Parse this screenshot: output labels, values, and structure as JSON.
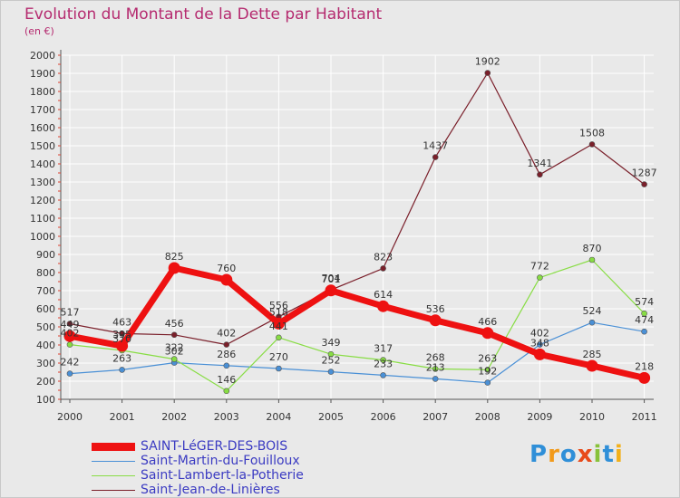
{
  "header": {
    "title": "Evolution du Montant de la Dette par Habitant",
    "unit": "(en €)"
  },
  "brand": "Proxiti",
  "colors": {
    "title": "#b52a6f",
    "legend_text": "#3b3bc2",
    "background": "#e9e9e9",
    "grid": "#ffffff"
  },
  "chart_data": {
    "type": "line",
    "title": "Evolution du Montant de la Dette par Habitant",
    "subtitle": "(en €)",
    "x": [
      "2000",
      "2001",
      "2002",
      "2003",
      "2004",
      "2005",
      "2006",
      "2007",
      "2008",
      "2009",
      "2010",
      "2011"
    ],
    "y_ticks": [
      100,
      200,
      300,
      400,
      500,
      600,
      700,
      800,
      900,
      1000,
      1100,
      1200,
      1300,
      1400,
      1500,
      1600,
      1700,
      1800,
      1900,
      2000
    ],
    "ylim": [
      100,
      2000
    ],
    "grid": true,
    "legend_position": "bottom-left",
    "series": [
      {
        "name": "SAINT-LéGER-DES-BOIS",
        "color": "#ee1111",
        "values": [
          449,
          395,
          825,
          760,
          518,
          701,
          614,
          536,
          466,
          348,
          285,
          218
        ],
        "labels": [
          "449",
          "395",
          "825",
          "760",
          "518",
          "701",
          "614",
          "536",
          "466",
          "348",
          "285",
          "218"
        ]
      },
      {
        "name": "Saint-Martin-du-Fouilloux",
        "color": "#4a90d6",
        "values": [
          242,
          263,
          302,
          286,
          270,
          252,
          233,
          213,
          192,
          402,
          524,
          474
        ],
        "labels": [
          "242",
          "263",
          "302",
          "286",
          "270",
          "252",
          "233",
          "213",
          "192",
          "402",
          "524",
          "474"
        ]
      },
      {
        "name": "Saint-Lambert-la-Potherie",
        "color": "#88dd44",
        "values": [
          402,
          370,
          322,
          146,
          441,
          349,
          317,
          268,
          263,
          772,
          870,
          574
        ],
        "labels": [
          "402",
          "370",
          "322",
          "146",
          "441",
          "349",
          "317",
          "268",
          "263",
          "772",
          "870",
          "574"
        ]
      },
      {
        "name": "Saint-Jean-de-Linières",
        "color": "#7a1f2a",
        "values": [
          517,
          463,
          456,
          402,
          556,
          704,
          823,
          1437,
          1902,
          1341,
          1508,
          1287
        ],
        "labels": [
          "517",
          "463",
          "456",
          "402",
          "556",
          "704",
          "823",
          "1437",
          "1902",
          "1341",
          "1508",
          "1287"
        ]
      }
    ]
  }
}
